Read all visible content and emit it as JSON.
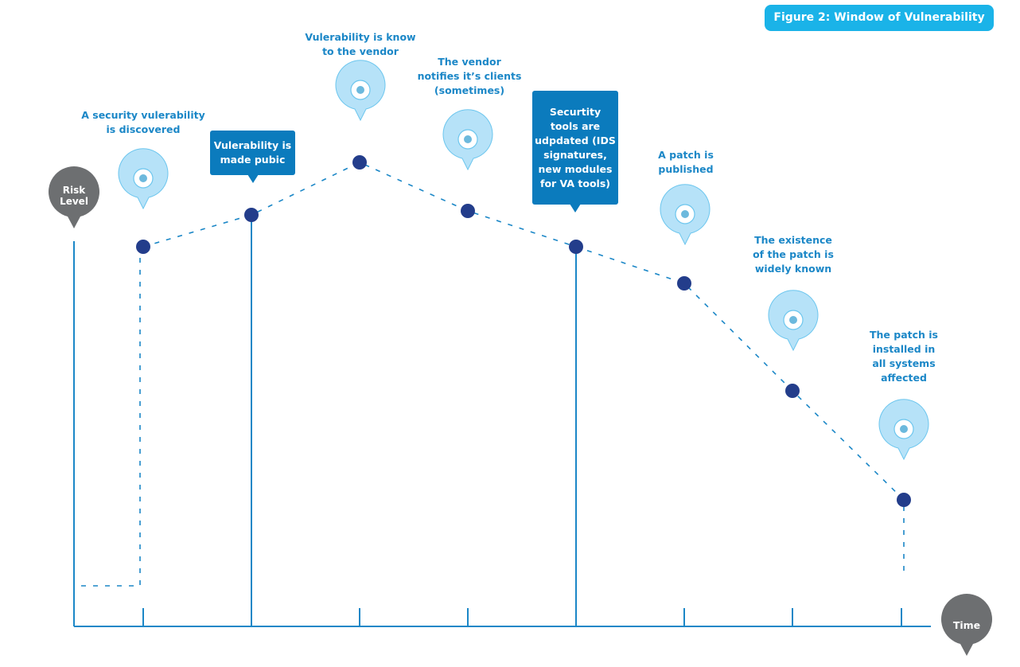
{
  "figure_title": "Figure 2: Window of Vulnerability",
  "y_axis_label_line1": "Risk",
  "y_axis_label_line2": "Level",
  "x_axis_label": "Time",
  "annotations": {
    "discovered": [
      "A security vulerability",
      "is discovered"
    ],
    "public": [
      "Vulerability is",
      "made pubic"
    ],
    "vendor_known": [
      "Vulerability is know",
      "to the vendor"
    ],
    "vendor_notifies": [
      "The vendor",
      "notifies it’s clients",
      "(sometimes)"
    ],
    "tools_updated": [
      "Securtity",
      "tools are",
      "udpdated (IDS",
      "signatures,",
      "new modules",
      "for VA tools)"
    ],
    "patch_published": [
      "A patch is",
      "published"
    ],
    "patch_known": [
      "The existence",
      "of the patch is",
      "widely known"
    ],
    "patch_installed": [
      "The patch is",
      "installed in",
      "all systems",
      "affected"
    ]
  },
  "colors": {
    "line": "#1b87c7",
    "point": "#233d8b",
    "pin_fill": "#b6e2f8",
    "pin_stroke": "#6cc6ee",
    "callout_box": "#0b7bbd",
    "annotation_text": "#1b87c7",
    "title_badge": "#1ab3e8",
    "axis_badge": "#6d6f71"
  },
  "icons": {
    "pin": "location-pin-icon",
    "axis_badge": "circle-badge-icon"
  }
}
